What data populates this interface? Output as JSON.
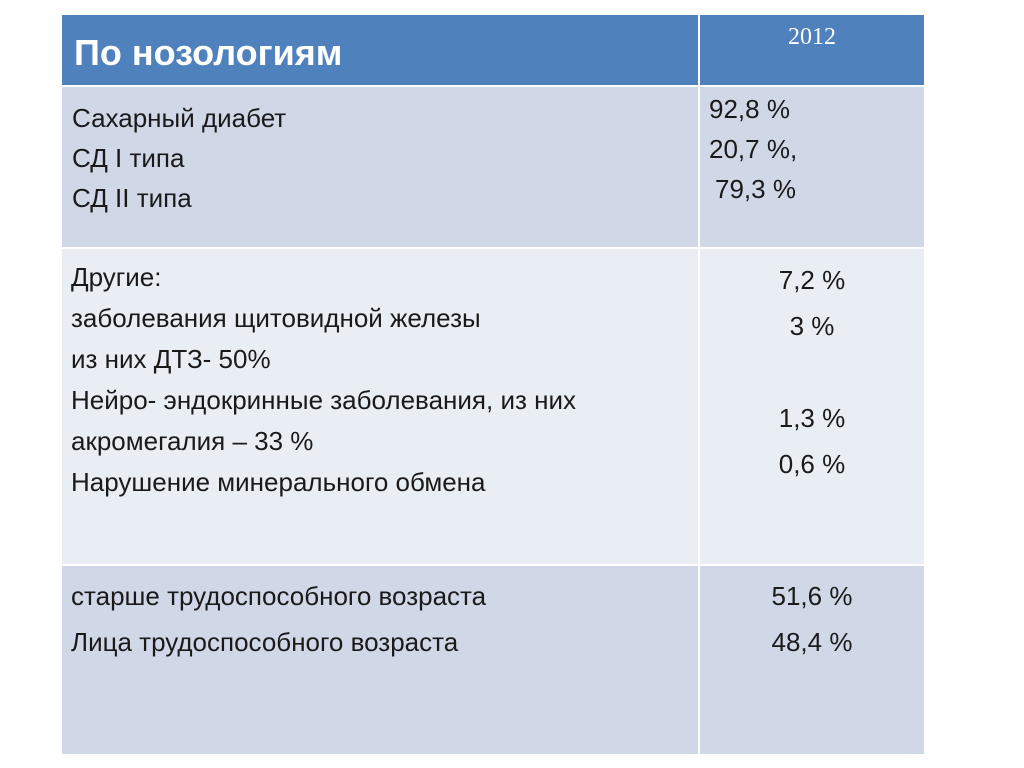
{
  "table": {
    "header": {
      "title": "По нозологиям",
      "year": "2012"
    },
    "rows": [
      {
        "labels": [
          "Сахарный диабет",
          "СД I типа",
          "СД II типа"
        ],
        "values": [
          "92,8 %",
          "20,7 %,",
          "79,3 %"
        ]
      },
      {
        "labels": [
          "Другие:",
          "заболевания щитовидной железы",
          "из них ДТЗ-  50%",
          "Нейро- эндокринные заболевания, из них",
          "акромегалия – 33 %",
          "Нарушение минерального обмена"
        ],
        "values": [
          "7,2 %",
          "3 %",
          "1,3 %",
          "0,6 %"
        ]
      },
      {
        "labels": [
          "старше трудоспособного возраста",
          "Лица трудоспособного возраста"
        ],
        "values": [
          "51,6 %",
          "48,4 %"
        ]
      }
    ]
  }
}
